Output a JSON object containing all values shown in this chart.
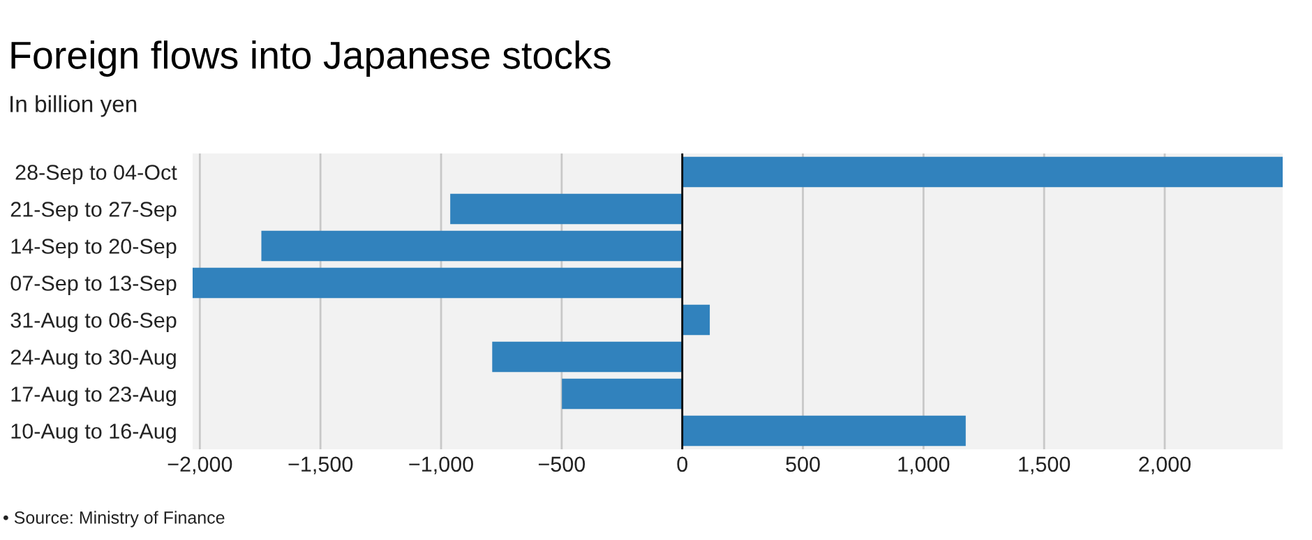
{
  "chart_data": {
    "type": "bar",
    "orientation": "horizontal",
    "title": "Foreign flows into Japanese stocks",
    "subtitle": "In billion yen",
    "categories": [
      "28-Sep to 04-Oct",
      "21-Sep to 27-Sep",
      "14-Sep to 20-Sep",
      "07-Sep to 13-Sep",
      "31-Aug to 06-Sep",
      "24-Aug to 30-Aug",
      "17-Aug to 23-Aug",
      "10-Aug to 16-Aug"
    ],
    "values": [
      2489,
      -962,
      -1745,
      -2030,
      114,
      -788,
      -499,
      1175
    ],
    "color": "#3182bd",
    "xlim": [
      -2030,
      2489
    ],
    "xticks": [
      {
        "value": -2000,
        "label": "−2,000"
      },
      {
        "value": -1500,
        "label": "−1,500"
      },
      {
        "value": -1000,
        "label": "−1,000"
      },
      {
        "value": -500,
        "label": "−500"
      },
      0,
      500,
      {
        "value": 1000,
        "label": "1,000"
      },
      {
        "value": 1500,
        "label": "1,500"
      },
      {
        "value": 2000,
        "label": "2,000"
      }
    ],
    "grid": "x",
    "ref_lines": [
      {
        "axis": "x",
        "value": 0,
        "color": "#000000"
      }
    ],
    "annotations": [
      "• Source: Ministry of Finance"
    ]
  }
}
